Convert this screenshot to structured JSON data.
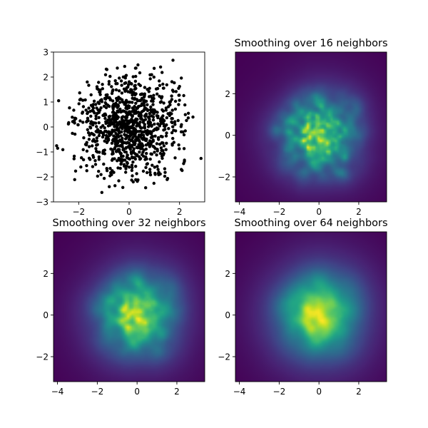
{
  "chart_data": [
    {
      "type": "scatter",
      "title": "",
      "marker_color": "#000000",
      "n_points": 1000,
      "distribution": "standard normal (x and y)",
      "xlim": [
        -3,
        3
      ],
      "ylim": [
        -3,
        3
      ],
      "xticks": [
        -2,
        0,
        2
      ],
      "yticks": [
        -3,
        -2,
        -1,
        0,
        1,
        2,
        3
      ],
      "tick_labels_x": [
        "−2",
        "0",
        "2"
      ],
      "tick_labels_y": [
        "−3",
        "−2",
        "−1",
        "0",
        "1",
        "2",
        "3"
      ]
    },
    {
      "type": "heatmap",
      "title": "Smoothing over 16 neighbors",
      "colormap": "viridis",
      "neighbors": 16,
      "xlim": [
        -4.2,
        3.4
      ],
      "ylim": [
        -3.2,
        4.0
      ],
      "xticks": [
        -4,
        -2,
        0,
        2
      ],
      "yticks": [
        -2,
        0,
        2
      ],
      "tick_labels_x": [
        "−4",
        "−2",
        "0",
        "2"
      ],
      "tick_labels_y": [
        "−2",
        "0",
        "2"
      ]
    },
    {
      "type": "heatmap",
      "title": "Smoothing over 32 neighbors",
      "colormap": "viridis",
      "neighbors": 32,
      "xlim": [
        -4.2,
        3.4
      ],
      "ylim": [
        -3.2,
        4.0
      ],
      "xticks": [
        -4,
        -2,
        0,
        2
      ],
      "yticks": [
        -2,
        0,
        2
      ],
      "tick_labels_x": [
        "−4",
        "−2",
        "0",
        "2"
      ],
      "tick_labels_y": [
        "−2",
        "0",
        "2"
      ]
    },
    {
      "type": "heatmap",
      "title": "Smoothing over 64 neighbors",
      "colormap": "viridis",
      "neighbors": 64,
      "xlim": [
        -4.2,
        3.4
      ],
      "ylim": [
        -3.2,
        4.0
      ],
      "xticks": [
        -4,
        -2,
        0,
        2
      ],
      "yticks": [
        -2,
        0,
        2
      ],
      "tick_labels_x": [
        "−4",
        "−2",
        "0",
        "2"
      ],
      "tick_labels_y": [
        "−2",
        "0",
        "2"
      ]
    }
  ]
}
